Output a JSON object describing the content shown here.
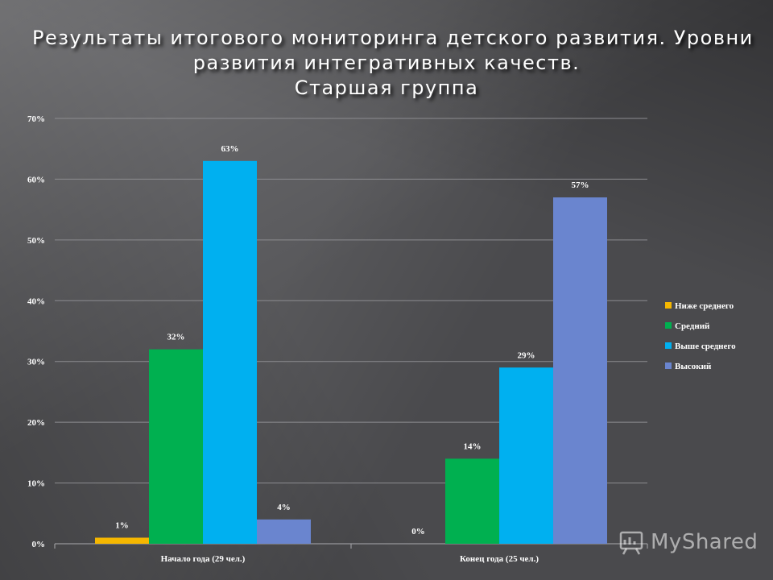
{
  "title": {
    "line1": "Результаты итогового мониторинга  детского развития. Уровни",
    "line2": "развития интегративных качеств.",
    "line3": "Старшая группа"
  },
  "watermark": {
    "text": "MyShared",
    "icon": "presentation-board-icon"
  },
  "chart_data": {
    "type": "bar",
    "categories": [
      "Начало года (29 чел.)",
      "Конец года (25 чел.)"
    ],
    "series": [
      {
        "name": "Ниже среднего",
        "color": "#f5b700",
        "values": [
          1,
          0
        ],
        "labels": [
          "1%",
          "0%"
        ]
      },
      {
        "name": "Средний",
        "color": "#00b050",
        "values": [
          32,
          14
        ],
        "labels": [
          "32%",
          "14%"
        ]
      },
      {
        "name": "Выше среднего",
        "color": "#00b0f0",
        "values": [
          63,
          29
        ],
        "labels": [
          "63%",
          "29%"
        ]
      },
      {
        "name": "Высокий",
        "color": "#6a85cf",
        "values": [
          4,
          57
        ],
        "labels": [
          "4%",
          "57%"
        ]
      }
    ],
    "ylim": [
      0,
      70
    ],
    "yticks": [
      0,
      10,
      20,
      30,
      40,
      50,
      60,
      70
    ],
    "ytick_labels": [
      "0%",
      "10%",
      "20%",
      "30%",
      "40%",
      "50%",
      "60%",
      "70%"
    ],
    "grid": true,
    "legend_position": "right"
  }
}
